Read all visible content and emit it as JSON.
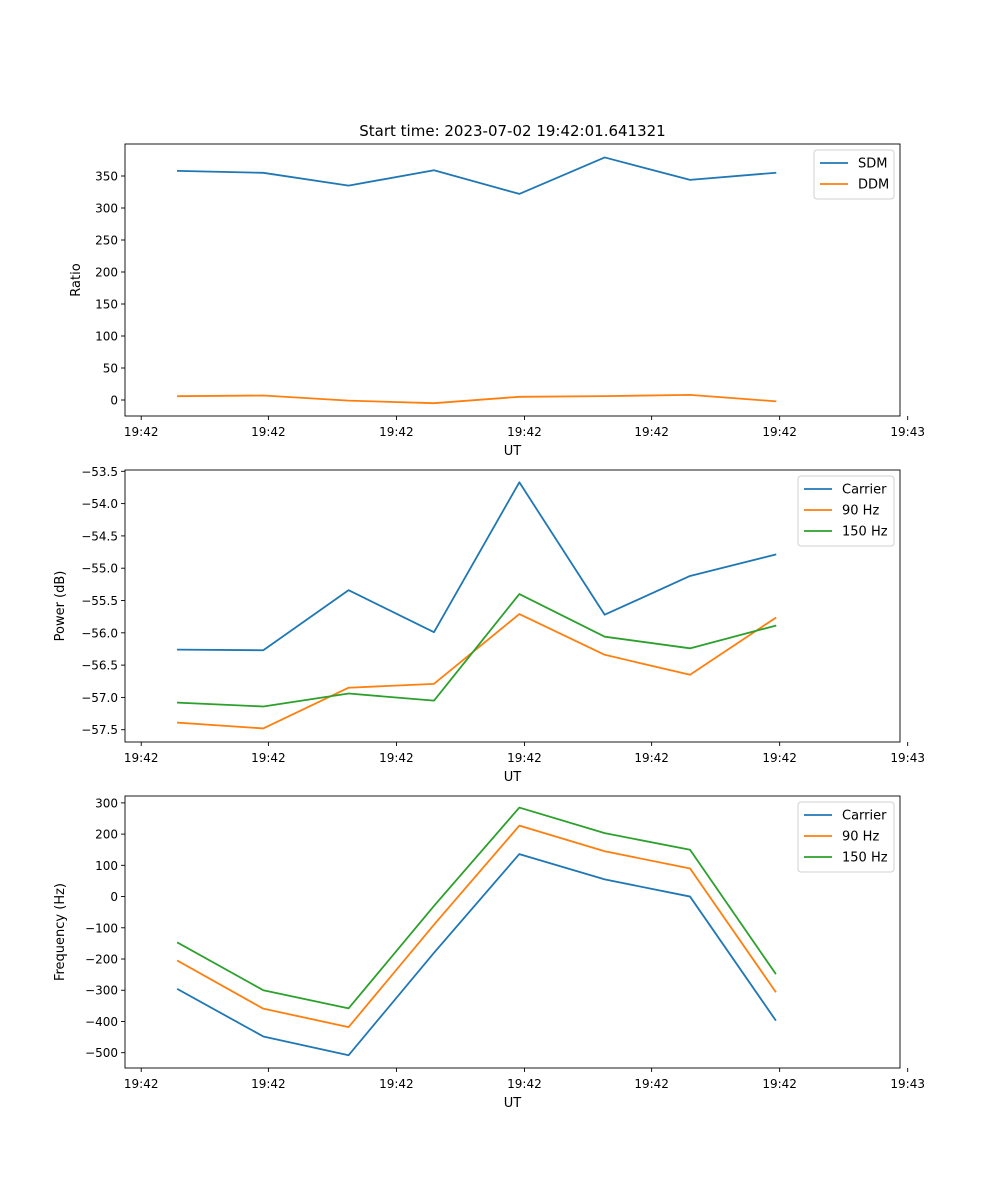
{
  "figure": {
    "title": "Start time: 2023-07-02 19:42:01.641321"
  },
  "colors": {
    "blue": "#1f77b4",
    "orange": "#ff7f0e",
    "green": "#2ca02c"
  },
  "chart_data": [
    {
      "type": "line",
      "title": "Start time: 2023-07-02 19:42:01.641321",
      "xlabel": "UT",
      "ylabel": "Ratio",
      "x": [
        1,
        2,
        3,
        4,
        5,
        6,
        7,
        8
      ],
      "xlim": [
        0.38,
        9.46
      ],
      "xticks": [
        0.57,
        2.06,
        3.56,
        5.06,
        6.55,
        8.05,
        9.55
      ],
      "xticklabels": [
        "19:42",
        "19:42",
        "19:42",
        "19:42",
        "19:42",
        "19:42",
        "19:43"
      ],
      "ylim": [
        -25,
        400
      ],
      "yticks": [
        0,
        50,
        100,
        150,
        200,
        250,
        300,
        350
      ],
      "yticklabels": [
        "0",
        "50",
        "100",
        "150",
        "200",
        "250",
        "300",
        "350"
      ],
      "legend": "top-right",
      "series": [
        {
          "name": "SDM",
          "color": "#1f77b4",
          "values": [
            358,
            355,
            335,
            359,
            322,
            379,
            344,
            355
          ]
        },
        {
          "name": "DDM",
          "color": "#ff7f0e",
          "values": [
            6,
            7,
            -1,
            -5,
            5,
            6,
            8,
            -2
          ]
        }
      ]
    },
    {
      "type": "line",
      "title": "",
      "xlabel": "UT",
      "ylabel": "Power (dB)",
      "x": [
        1,
        2,
        3,
        4,
        5,
        6,
        7,
        8
      ],
      "xlim": [
        0.38,
        9.46
      ],
      "xticks": [
        0.57,
        2.06,
        3.56,
        5.06,
        6.55,
        8.05,
        9.55
      ],
      "xticklabels": [
        "19:42",
        "19:42",
        "19:42",
        "19:42",
        "19:42",
        "19:42",
        "19:43"
      ],
      "ylim": [
        -57.69,
        -53.48
      ],
      "yticks": [
        -57.5,
        -57.0,
        -56.5,
        -56.0,
        -55.5,
        -55.0,
        -54.5,
        -54.0,
        -53.5
      ],
      "yticklabels": [
        "−57.5",
        "−57.0",
        "−56.5",
        "−56.0",
        "−55.5",
        "−55.0",
        "−54.5",
        "−54.0",
        "−53.5"
      ],
      "legend": "top-right",
      "series": [
        {
          "name": "Carrier",
          "color": "#1f77b4",
          "values": [
            -56.26,
            -56.27,
            -55.34,
            -55.99,
            -53.67,
            -55.72,
            -55.12,
            -54.79
          ]
        },
        {
          "name": "90 Hz",
          "color": "#ff7f0e",
          "values": [
            -57.39,
            -57.48,
            -56.85,
            -56.79,
            -55.71,
            -56.34,
            -56.65,
            -55.77
          ]
        },
        {
          "name": "150 Hz",
          "color": "#2ca02c",
          "values": [
            -57.08,
            -57.14,
            -56.94,
            -57.05,
            -55.4,
            -56.06,
            -56.24,
            -55.89
          ]
        }
      ]
    },
    {
      "type": "line",
      "title": "",
      "xlabel": "UT",
      "ylabel": "Frequency (Hz)",
      "x": [
        1,
        2,
        3,
        4,
        5,
        6,
        7,
        8
      ],
      "xlim": [
        0.38,
        9.46
      ],
      "xticks": [
        0.57,
        2.06,
        3.56,
        5.06,
        6.55,
        8.05,
        9.55
      ],
      "xticklabels": [
        "19:42",
        "19:42",
        "19:42",
        "19:42",
        "19:42",
        "19:42",
        "19:43"
      ],
      "ylim": [
        -549,
        322
      ],
      "yticks": [
        -500,
        -400,
        -300,
        -200,
        -100,
        0,
        100,
        200,
        300
      ],
      "yticklabels": [
        "−500",
        "−400",
        "−300",
        "−200",
        "−100",
        "0",
        "100",
        "200",
        "300"
      ],
      "legend": "top-right",
      "series": [
        {
          "name": "Carrier",
          "color": "#1f77b4",
          "values": [
            -297,
            -448,
            -508,
            -180,
            136,
            55,
            0,
            -395
          ]
        },
        {
          "name": "90 Hz",
          "color": "#ff7f0e",
          "values": [
            -206,
            -359,
            -418,
            -90,
            227,
            145,
            90,
            -304
          ]
        },
        {
          "name": "150 Hz",
          "color": "#2ca02c",
          "values": [
            -148,
            -300,
            -358,
            -30,
            285,
            203,
            150,
            -246
          ]
        }
      ]
    }
  ]
}
